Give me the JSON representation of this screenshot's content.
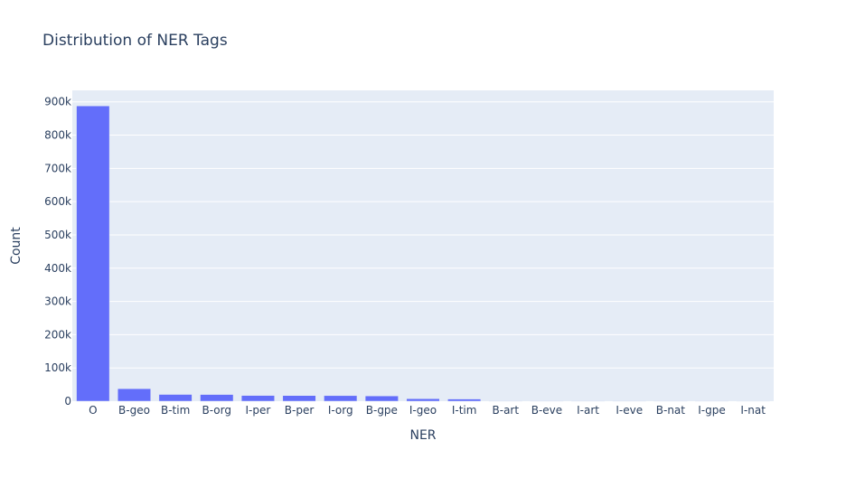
{
  "chart_data": {
    "type": "bar",
    "title": "Distribution of NER Tags",
    "xlabel": "NER",
    "ylabel": "Count",
    "categories": [
      "O",
      "B-geo",
      "B-tim",
      "B-org",
      "I-per",
      "B-per",
      "I-org",
      "B-gpe",
      "I-geo",
      "I-tim",
      "B-art",
      "B-eve",
      "I-art",
      "I-eve",
      "B-nat",
      "I-gpe",
      "I-nat"
    ],
    "values": [
      887908,
      37644,
      20333,
      20143,
      17251,
      16990,
      16784,
      15870,
      7414,
      6528,
      402,
      308,
      297,
      253,
      201,
      198,
      51
    ],
    "ylim": [
      0,
      934640
    ],
    "yticks": [
      0,
      100000,
      200000,
      300000,
      400000,
      500000,
      600000,
      700000,
      800000,
      900000
    ],
    "ytick_labels": [
      "0",
      "100k",
      "200k",
      "300k",
      "400k",
      "500k",
      "600k",
      "700k",
      "800k",
      "900k"
    ],
    "grid": true,
    "legend": "none",
    "colors": {
      "bar": "#636efa",
      "plot_bg": "#e5ecf6",
      "grid": "#ffffff",
      "text": "#2a3f5f"
    }
  }
}
